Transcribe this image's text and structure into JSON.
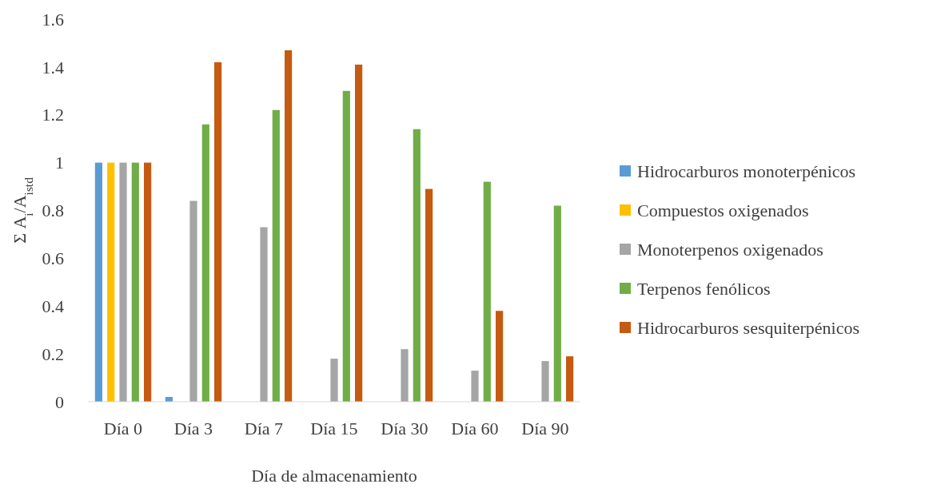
{
  "chart_data": {
    "type": "bar",
    "xlabel": "Día de almacenamiento",
    "ylabel": "Σ A$_{i}$/A$_{istd}$",
    "categories": [
      "Día 0",
      "Día 3",
      "Día 7",
      "Día 15",
      "Día 30",
      "Día 60",
      "Día 90"
    ],
    "series": [
      {
        "name": "Hidrocarburos monoterpénicos",
        "color": "#5b9bd5",
        "values": [
          1,
          0.02,
          0,
          0,
          0,
          0,
          0
        ]
      },
      {
        "name": "Compuestos oxigenados",
        "color": "#ffc000",
        "values": [
          1,
          0,
          0,
          0,
          0,
          0,
          0
        ]
      },
      {
        "name": "Monoterpenos oxigenados",
        "color": "#a5a5a5",
        "values": [
          1,
          0.84,
          0.73,
          0.18,
          0.22,
          0.13,
          0.17
        ]
      },
      {
        "name": "Terpenos fenólicos",
        "color": "#70ad47",
        "values": [
          1,
          1.16,
          1.22,
          1.3,
          1.14,
          0.92,
          0.82
        ]
      },
      {
        "name": "Hidrocarburos sesquiterpénicos",
        "color": "#c55a11",
        "values": [
          1,
          1.42,
          1.47,
          1.41,
          0.89,
          0.38,
          0.19
        ]
      }
    ],
    "ylim": [
      0,
      1.6
    ],
    "yticks": [
      0,
      0.2,
      0.4,
      0.6,
      0.8,
      1,
      1.2,
      1.4,
      1.6
    ],
    "grid": false,
    "legend": "right"
  }
}
